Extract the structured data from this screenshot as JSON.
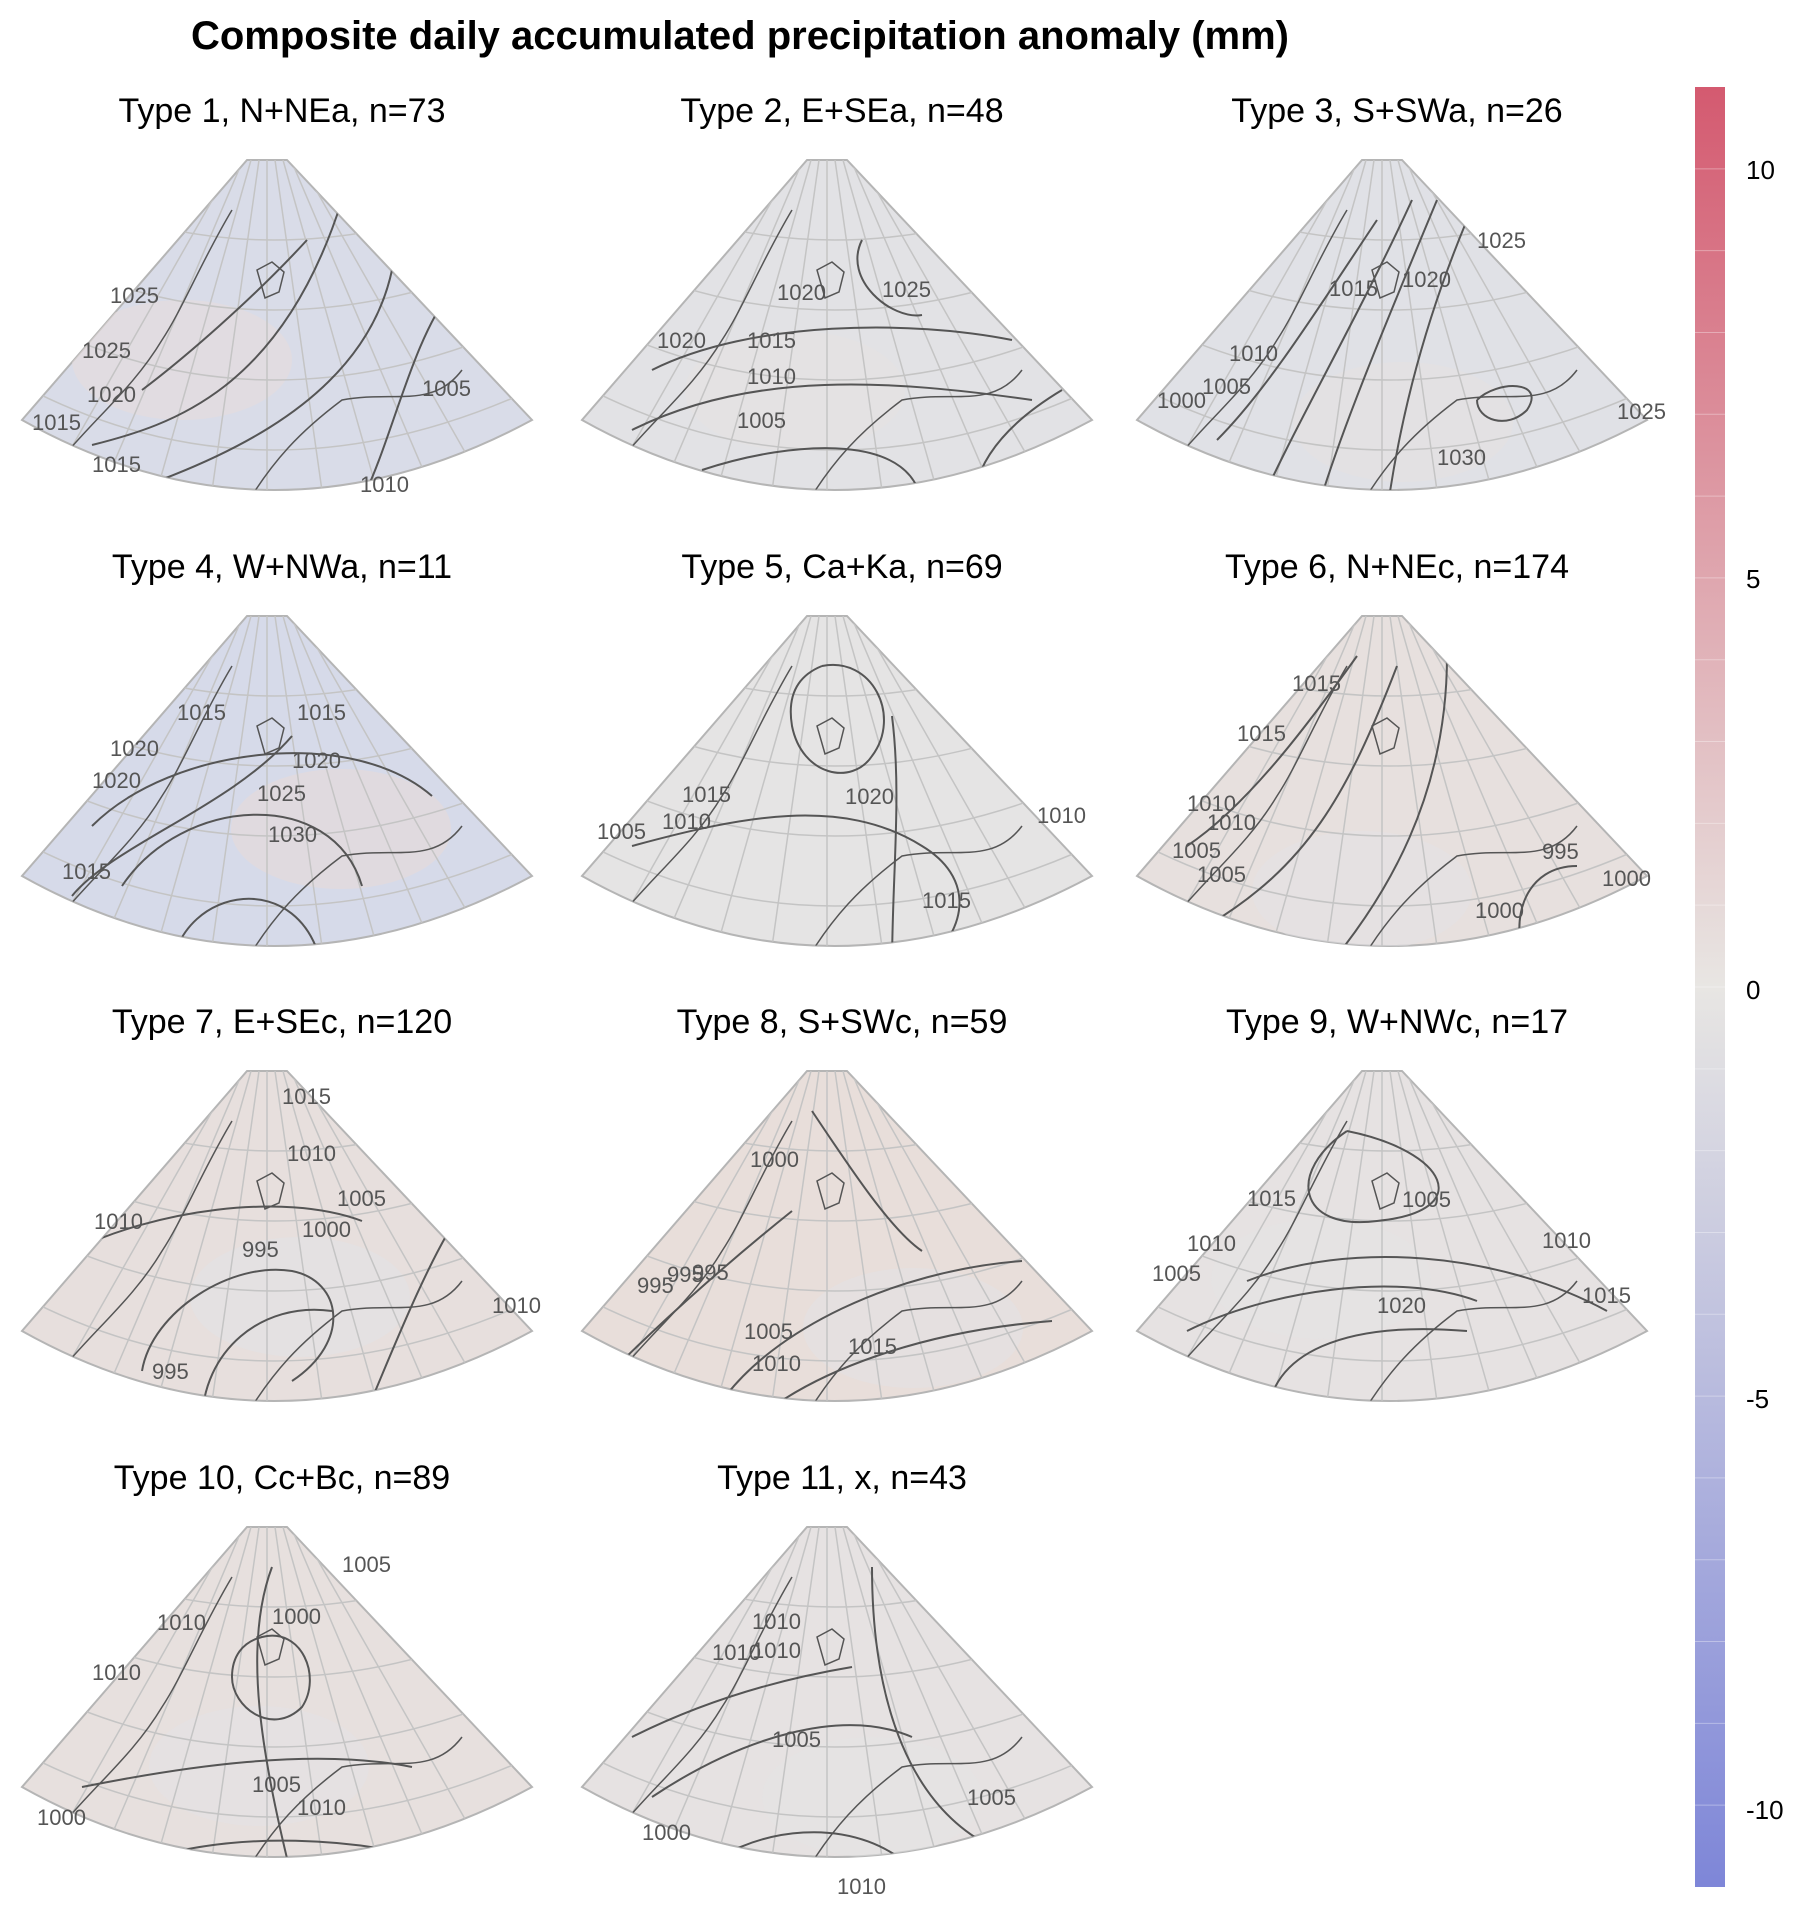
{
  "title": "Composite daily accumulated precipitation anomaly (mm)",
  "colorbar": {
    "ticks": [
      "10",
      "5",
      "0",
      "-5",
      "-10"
    ],
    "range": [
      -11,
      11
    ],
    "colors": {
      "positive": "#d45a70",
      "neutral": "#e8e6e3",
      "negative": "#7e86d8"
    }
  },
  "panels": [
    {
      "title": "Type 1, N+NEa, n=73",
      "labels": [
        "1025",
        "1025",
        "1020",
        "1015",
        "1015",
        "1005",
        "1010"
      ]
    },
    {
      "title": "Type 2, E+SEa, n=48",
      "labels": [
        "1020",
        "1020",
        "1025",
        "1015",
        "1010",
        "1005"
      ]
    },
    {
      "title": "Type 3, S+SWa, n=26",
      "labels": [
        "1025",
        "1015",
        "1020",
        "1010",
        "1005",
        "1000",
        "1025",
        "1030"
      ]
    },
    {
      "title": "Type 4, W+NWa, n=11",
      "labels": [
        "1015",
        "1015",
        "1020",
        "1020",
        "1020",
        "1025",
        "1030",
        "1015"
      ]
    },
    {
      "title": "Type 5, Ca+Ka, n=69",
      "labels": [
        "1015",
        "1010",
        "1005",
        "1020",
        "1010",
        "1015"
      ]
    },
    {
      "title": "Type 6, N+NEc, n=174",
      "labels": [
        "1015",
        "1015",
        "1010",
        "1010",
        "1005",
        "1005",
        "995",
        "1000",
        "1000"
      ]
    },
    {
      "title": "Type 7, E+SEc, n=120",
      "labels": [
        "1015",
        "1010",
        "1010",
        "1005",
        "1000",
        "995",
        "1010",
        "995"
      ]
    },
    {
      "title": "Type 8, S+SWc, n=59",
      "labels": [
        "1000",
        "995",
        "995",
        "995",
        "1005",
        "1010",
        "1015"
      ]
    },
    {
      "title": "Type 9, W+NWc, n=17",
      "labels": [
        "1015",
        "1010",
        "1005",
        "1005",
        "1010",
        "1020",
        "1015"
      ]
    },
    {
      "title": "Type 10, Cc+Bc, n=89",
      "labels": [
        "1005",
        "1010",
        "1000",
        "1010",
        "1005",
        "1000",
        "1010"
      ]
    },
    {
      "title": "Type 11, x, n=43",
      "labels": [
        "1010",
        "1010",
        "1010",
        "1005",
        "1005",
        "1000",
        "1010"
      ]
    }
  ]
}
